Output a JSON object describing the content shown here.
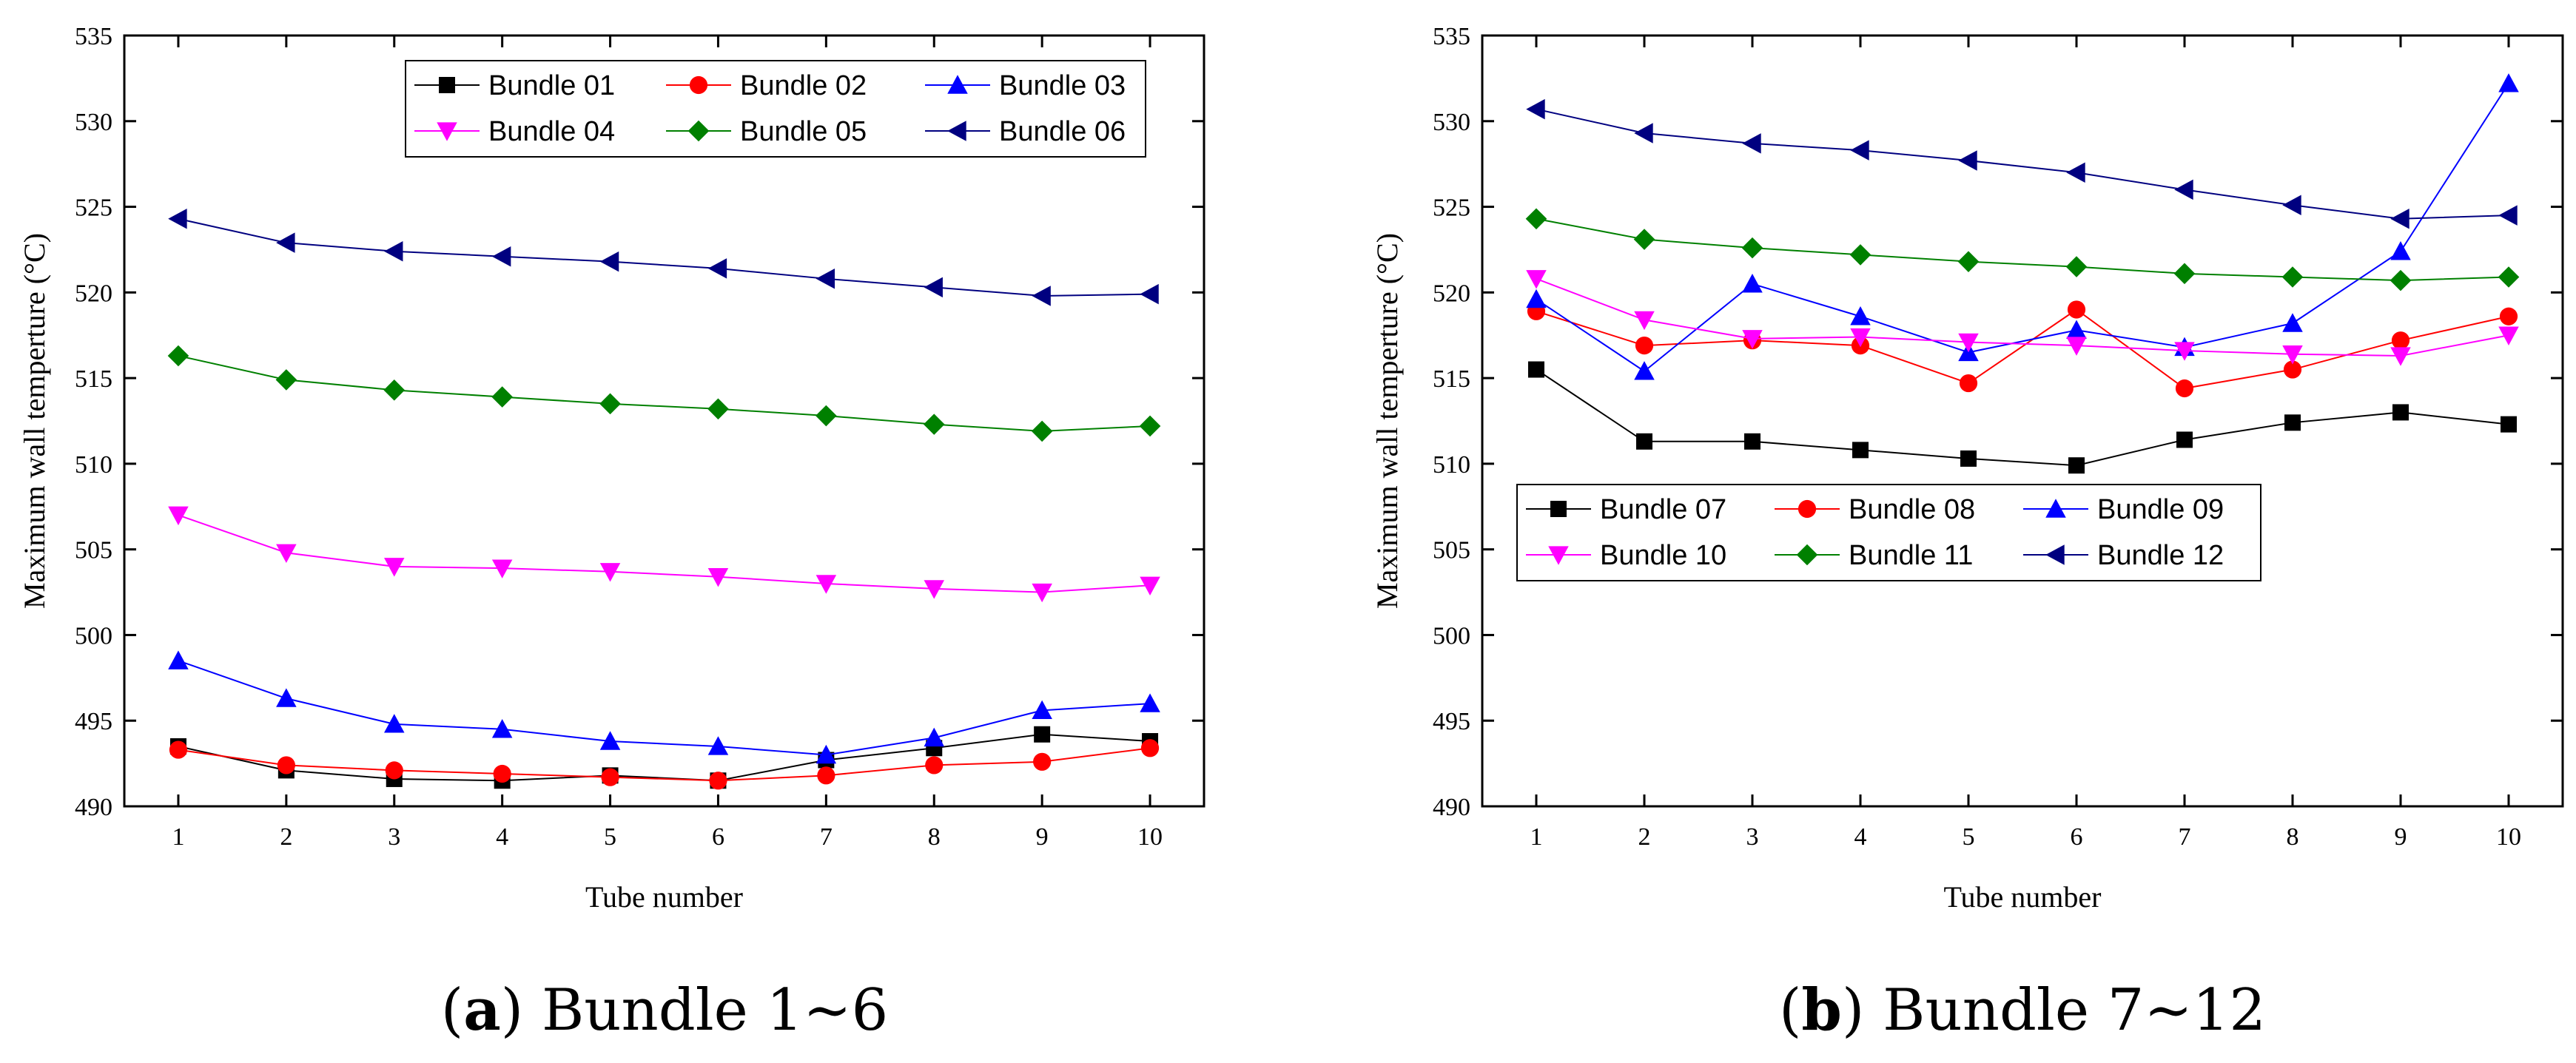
{
  "chart_data": [
    {
      "type": "line",
      "title": "",
      "caption": {
        "letter": "a",
        "text": "Bundle 1~6"
      },
      "xlabel": "Tube number",
      "ylabel": "Maximum wall temperture (°C)",
      "x": [
        1,
        2,
        3,
        4,
        5,
        6,
        7,
        8,
        9,
        10
      ],
      "xlim": [
        0.5,
        10.5
      ],
      "ylim": [
        490,
        535
      ],
      "yticks": [
        490,
        495,
        500,
        505,
        510,
        515,
        520,
        525,
        530,
        535
      ],
      "legend_position": "top-right",
      "series": [
        {
          "name": "Bundle 01",
          "marker": "square",
          "color": "#000000",
          "values": [
            493.5,
            492.1,
            491.6,
            491.5,
            491.8,
            491.5,
            492.7,
            493.4,
            494.2,
            493.8
          ]
        },
        {
          "name": "Bundle 02",
          "marker": "circle",
          "color": "#ff0000",
          "values": [
            493.3,
            492.4,
            492.1,
            491.9,
            491.7,
            491.5,
            491.8,
            492.4,
            492.6,
            493.4
          ]
        },
        {
          "name": "Bundle 03",
          "marker": "triangle-up",
          "color": "#0000ff",
          "values": [
            498.5,
            496.3,
            494.8,
            494.5,
            493.8,
            493.5,
            493.0,
            494.0,
            495.6,
            496.0
          ]
        },
        {
          "name": "Bundle 04",
          "marker": "triangle-down",
          "color": "#ff00ff",
          "values": [
            507.0,
            504.8,
            504.0,
            503.9,
            503.7,
            503.4,
            503.0,
            502.7,
            502.5,
            502.9
          ]
        },
        {
          "name": "Bundle 05",
          "marker": "diamond",
          "color": "#008000",
          "values": [
            516.3,
            514.9,
            514.3,
            513.9,
            513.5,
            513.2,
            512.8,
            512.3,
            511.9,
            512.2
          ]
        },
        {
          "name": "Bundle 06",
          "marker": "triangle-left",
          "color": "#000080",
          "values": [
            524.3,
            522.9,
            522.4,
            522.1,
            521.8,
            521.4,
            520.8,
            520.3,
            519.8,
            519.9
          ]
        }
      ]
    },
    {
      "type": "line",
      "title": "",
      "caption": {
        "letter": "b",
        "text": "Bundle 7~12"
      },
      "xlabel": "Tube number",
      "ylabel": "Maximum wall temperture (°C)",
      "x": [
        1,
        2,
        3,
        4,
        5,
        6,
        7,
        8,
        9,
        10
      ],
      "xlim": [
        0.5,
        10.5
      ],
      "ylim": [
        490,
        535
      ],
      "yticks": [
        490,
        495,
        500,
        505,
        510,
        515,
        520,
        525,
        530,
        535
      ],
      "legend_position": "center-left",
      "series": [
        {
          "name": "Bundle 07",
          "marker": "square",
          "color": "#000000",
          "values": [
            515.5,
            511.3,
            511.3,
            510.8,
            510.3,
            509.9,
            511.4,
            512.4,
            513.0,
            512.3
          ]
        },
        {
          "name": "Bundle 08",
          "marker": "circle",
          "color": "#ff0000",
          "values": [
            518.9,
            516.9,
            517.2,
            516.9,
            514.7,
            519.0,
            514.4,
            515.5,
            517.2,
            518.6
          ]
        },
        {
          "name": "Bundle 09",
          "marker": "triangle-up",
          "color": "#0000ff",
          "values": [
            519.6,
            515.4,
            520.5,
            518.6,
            516.5,
            517.8,
            516.8,
            518.2,
            522.4,
            532.2
          ]
        },
        {
          "name": "Bundle 10",
          "marker": "triangle-down",
          "color": "#ff00ff",
          "values": [
            520.8,
            518.4,
            517.3,
            517.4,
            517.1,
            516.9,
            516.6,
            516.4,
            516.3,
            517.5
          ]
        },
        {
          "name": "Bundle 11",
          "marker": "diamond",
          "color": "#008000",
          "values": [
            524.3,
            523.1,
            522.6,
            522.2,
            521.8,
            521.5,
            521.1,
            520.9,
            520.7,
            520.9
          ]
        },
        {
          "name": "Bundle 12",
          "marker": "triangle-left",
          "color": "#000080",
          "values": [
            530.7,
            529.3,
            528.7,
            528.3,
            527.7,
            527.0,
            526.0,
            525.1,
            524.3,
            524.5
          ]
        }
      ]
    }
  ]
}
